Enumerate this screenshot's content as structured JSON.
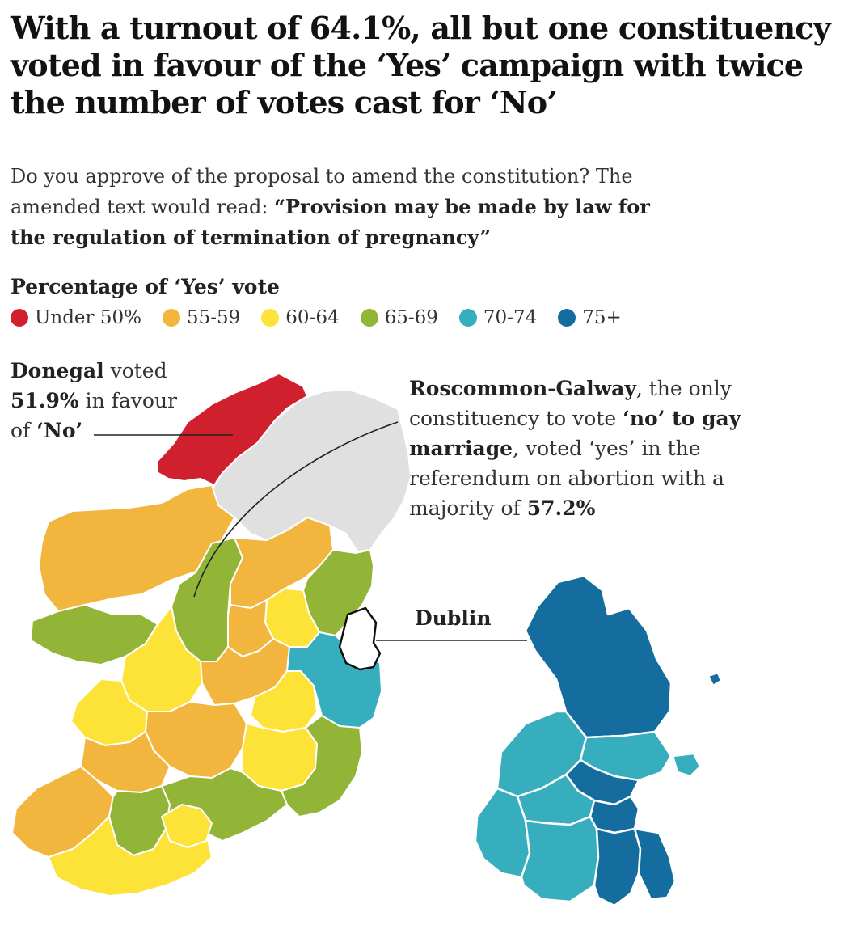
{
  "headline": "With a turnout of 64.1%, all but one constituency voted in favour of the ‘Yes’ campaign with twice the number of votes cast for ‘No’",
  "question": {
    "intro": "Do you approve of the proposal to amend the constitution? The amended text would read: ",
    "quote": "“Provision may be made by law for the regulation of termination of pregnancy”"
  },
  "legend": {
    "title": "Percentage of ‘Yes’ vote",
    "items": [
      {
        "label": "Under 50%",
        "color": "#d0202e"
      },
      {
        "label": "55-59",
        "color": "#f2b63f"
      },
      {
        "label": "60-64",
        "color": "#fde238"
      },
      {
        "label": "65-69",
        "color": "#92b537"
      },
      {
        "label": "70-74",
        "color": "#36aebd"
      },
      {
        "label": "75+",
        "color": "#146d9e"
      }
    ]
  },
  "annotations": {
    "donegal": {
      "name": "Donegal",
      "t1": " voted ",
      "pct": "51.9%",
      "t2": " in favour of ",
      "choice": "‘No’"
    },
    "roscommon": {
      "name": "Roscommon-Galway",
      "t1": ", the only constituency to vote ",
      "bold1": "‘no’ to gay marriage",
      "t2": ", voted ‘yes’ in the referendum on abortion with a majority of ",
      "pct": "57.2%"
    },
    "dublin": {
      "label": "Dublin"
    }
  }
}
